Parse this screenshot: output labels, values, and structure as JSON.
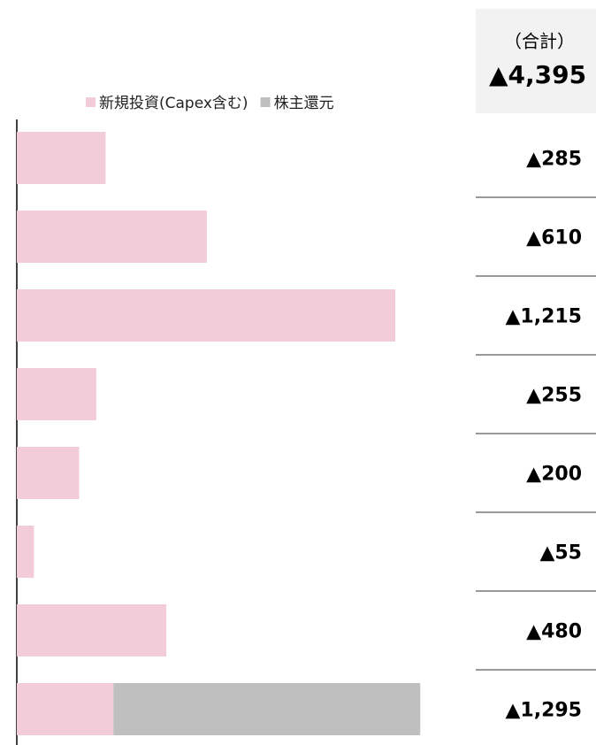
{
  "chart_data": {
    "type": "bar",
    "orientation": "horizontal",
    "stacked": true,
    "categories": [
      null,
      null,
      null,
      null,
      null,
      null,
      null,
      null
    ],
    "series": [
      {
        "name": "新規投資(Capex含む)",
        "color": "#f2ccd9",
        "values": [
          285,
          610,
          1215,
          255,
          200,
          55,
          480,
          310
        ]
      },
      {
        "name": "株主還元",
        "color": "#bfbfbf",
        "values": [
          null,
          null,
          null,
          null,
          null,
          null,
          null,
          985
        ]
      }
    ],
    "xlim": [
      0,
      1300
    ],
    "totals": {
      "header": "（合計）",
      "grand_total": 4395,
      "grand_total_label": "▲4,395",
      "values": [
        285,
        610,
        1215,
        255,
        200,
        55,
        480,
        1295
      ],
      "value_labels": [
        "▲285",
        "▲610",
        "▲1,215",
        "▲255",
        "▲200",
        "▲55",
        "▲480",
        "▲1,295"
      ]
    },
    "legend": "top"
  }
}
